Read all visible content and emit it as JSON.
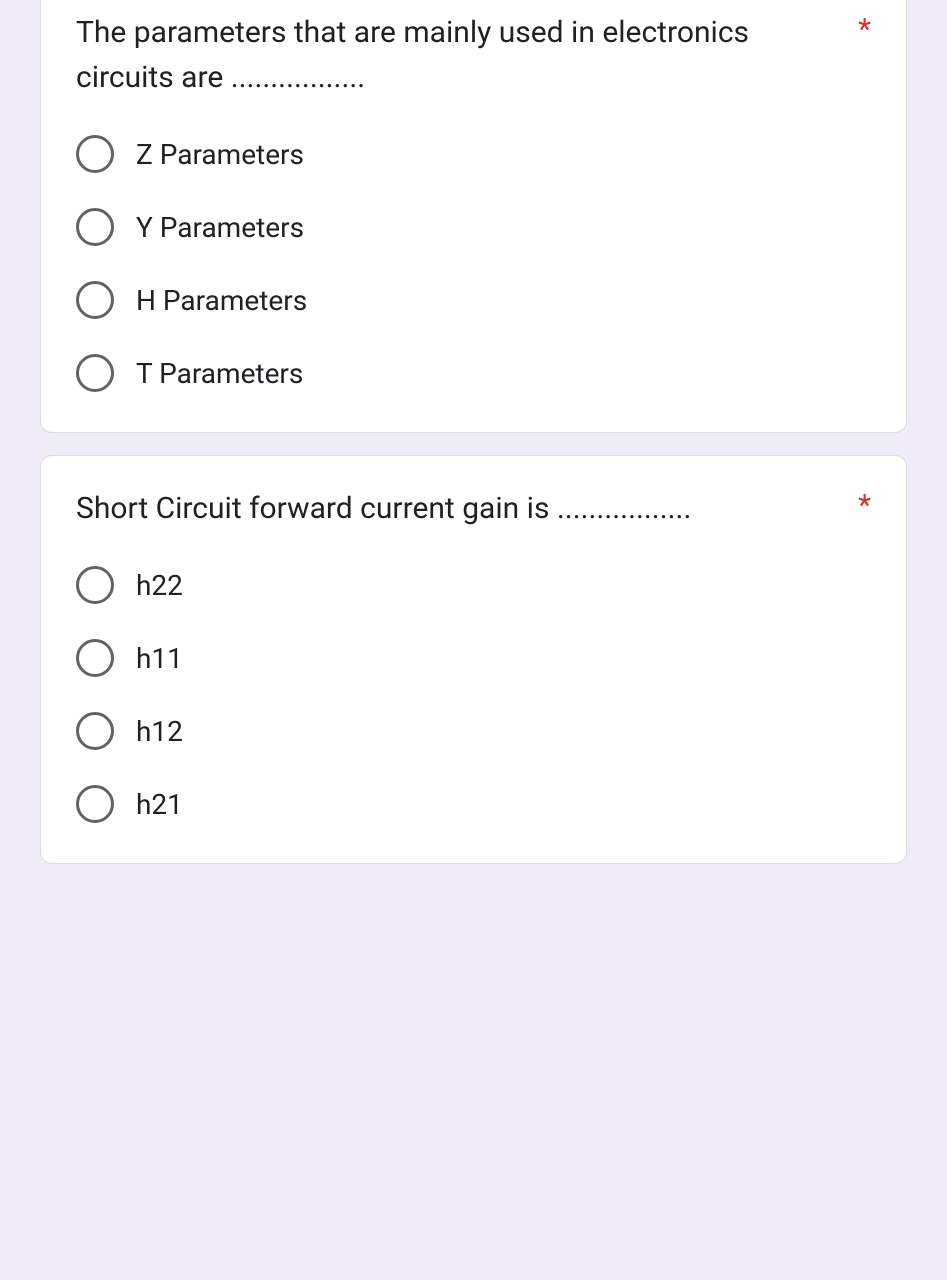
{
  "colors": {
    "page_bg": "#f0ebf8",
    "card_bg": "#ffffff",
    "card_border": "#dadce0",
    "text": "#202124",
    "radio_border": "#5f6368",
    "required": "#d93025"
  },
  "questions": [
    {
      "text": "The parameters that are mainly used in electronics circuits are .................",
      "required_marker": "*",
      "options": [
        {
          "label": "Z Parameters"
        },
        {
          "label": "Y Parameters"
        },
        {
          "label": "H Parameters"
        },
        {
          "label": "T Parameters"
        }
      ]
    },
    {
      "text": "Short Circuit forward current gain is .................",
      "required_marker": "*",
      "options": [
        {
          "label": "h22"
        },
        {
          "label": "h11"
        },
        {
          "label": "h12"
        },
        {
          "label": "h21"
        }
      ]
    }
  ]
}
